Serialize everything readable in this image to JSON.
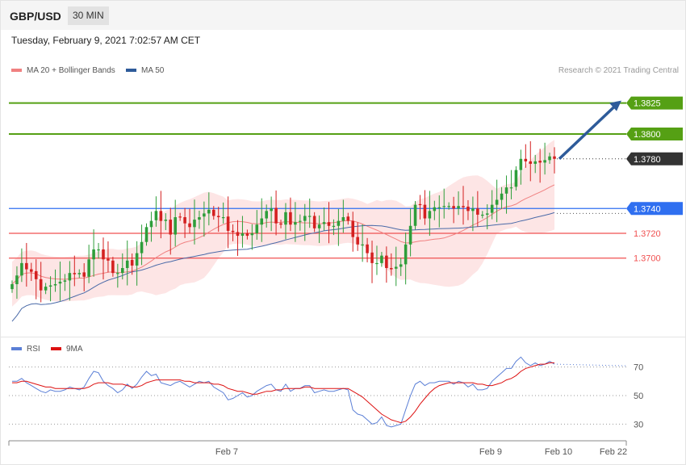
{
  "header": {
    "pair": "GBP/USD",
    "timeframe": "30 MIN"
  },
  "timestamp": "Tuesday, February 9, 2021 7:02:57 AM CET",
  "legend_top": [
    {
      "label": "MA 20 + Bollinger Bands",
      "color": "#f08080"
    },
    {
      "label": "MA 50",
      "color": "#2e5b9a"
    }
  ],
  "credit": "Research © 2021 Trading Central",
  "legend_bottom": [
    {
      "label": "RSI",
      "color": "#5b7fd6"
    },
    {
      "label": "9MA",
      "color": "#dd1111"
    }
  ],
  "colors": {
    "up": "#2e9e3a",
    "down": "#d42020",
    "target": "#55a014",
    "pivot": "#2f6ff0",
    "support": "#f05050",
    "last": "#333333",
    "band": "#fde0e0",
    "ma20": "#f08080",
    "ma50": "#4a6aa8",
    "arrow": "#2e5b9a"
  },
  "chart_data": {
    "type": "candlestick",
    "ylim": [
      1.3638,
      1.3856
    ],
    "levels": [
      {
        "value": 1.3825,
        "label": "1.3825",
        "kind": "target"
      },
      {
        "value": 1.38,
        "label": "1.3800",
        "kind": "target"
      },
      {
        "value": 1.378,
        "label": "1.3780",
        "kind": "last"
      },
      {
        "value": 1.374,
        "label": "1.3740",
        "kind": "pivot"
      },
      {
        "value": 1.372,
        "label": "1.3720",
        "kind": "support"
      },
      {
        "value": 1.37,
        "label": "1.3700",
        "kind": "support"
      }
    ],
    "closes": [
      1.3679,
      1.3686,
      1.3696,
      1.3691,
      1.3689,
      1.3683,
      1.3674,
      1.3677,
      1.3678,
      1.3679,
      1.3681,
      1.3682,
      1.3688,
      1.3687,
      1.3688,
      1.3685,
      1.3699,
      1.3707,
      1.3707,
      1.3699,
      1.3698,
      1.3688,
      1.3688,
      1.3692,
      1.3698,
      1.3694,
      1.3704,
      1.3713,
      1.3725,
      1.373,
      1.3738,
      1.373,
      1.3731,
      1.3719,
      1.3733,
      1.3733,
      1.3728,
      1.3725,
      1.3731,
      1.3733,
      1.3736,
      1.3739,
      1.3734,
      1.3733,
      1.3733,
      1.3722,
      1.3721,
      1.3718,
      1.372,
      1.3718,
      1.372,
      1.3727,
      1.3732,
      1.3738,
      1.374,
      1.3728,
      1.3727,
      1.3737,
      1.3727,
      1.3729,
      1.373,
      1.3734,
      1.3734,
      1.3724,
      1.3727,
      1.3729,
      1.3726,
      1.3726,
      1.373,
      1.3733,
      1.373,
      1.3717,
      1.3711,
      1.3711,
      1.3704,
      1.3696,
      1.3696,
      1.3702,
      1.3692,
      1.3691,
      1.3693,
      1.3695,
      1.3711,
      1.3726,
      1.3743,
      1.3743,
      1.3732,
      1.3738,
      1.3741,
      1.3741,
      1.3742,
      1.3742,
      1.374,
      1.3742,
      1.3741,
      1.3738,
      1.374,
      1.3735,
      1.3735,
      1.3736,
      1.3743,
      1.3747,
      1.3752,
      1.3757,
      1.3757,
      1.3771,
      1.378,
      1.3778,
      1.3776,
      1.3778,
      1.3777,
      1.3779,
      1.3782,
      1.378
    ],
    "candle_count": 114,
    "rsi": {
      "ylim": [
        20,
        80
      ],
      "ticks": [
        {
          "value": 70,
          "label": "70"
        },
        {
          "value": 50,
          "label": "50"
        },
        {
          "value": 30,
          "label": "30"
        }
      ],
      "rsi_values": [
        60,
        60,
        62,
        59,
        57,
        55,
        53,
        52,
        54,
        53,
        53,
        54,
        56,
        55,
        54,
        56,
        62,
        67,
        66,
        60,
        57,
        55,
        52,
        54,
        58,
        55,
        58,
        63,
        67,
        64,
        65,
        59,
        58,
        57,
        59,
        60,
        58,
        56,
        58,
        60,
        59,
        60,
        56,
        54,
        52,
        47,
        48,
        50,
        52,
        49,
        50,
        53,
        55,
        57,
        58,
        54,
        53,
        58,
        53,
        55,
        55,
        57,
        57,
        52,
        53,
        54,
        53,
        53,
        54,
        55,
        54,
        40,
        37,
        36,
        33,
        30,
        31,
        35,
        29,
        28,
        29,
        30,
        40,
        50,
        58,
        60,
        57,
        59,
        59,
        60,
        60,
        60,
        58,
        60,
        59,
        56,
        58,
        54,
        54,
        55,
        60,
        63,
        66,
        69,
        69,
        74,
        77,
        73,
        71,
        73,
        71,
        72,
        74,
        72
      ],
      "ma_values": [
        59,
        59,
        60,
        60,
        59,
        58,
        57,
        56,
        56,
        55,
        55,
        55,
        55,
        55,
        55,
        55,
        56,
        58,
        59,
        59,
        59,
        58,
        58,
        58,
        57,
        56,
        56,
        57,
        59,
        60,
        61,
        61,
        61,
        61,
        61,
        61,
        60,
        60,
        59,
        59,
        59,
        59,
        58,
        58,
        57,
        55,
        54,
        53,
        53,
        52,
        51,
        51,
        52,
        53,
        53,
        54,
        54,
        55,
        55,
        55,
        55,
        56,
        56,
        55,
        55,
        55,
        55,
        55,
        55,
        55,
        55,
        53,
        51,
        49,
        46,
        43,
        40,
        37,
        35,
        33,
        32,
        31,
        32,
        35,
        39,
        44,
        48,
        52,
        55,
        57,
        58,
        59,
        59,
        59,
        59,
        59,
        59,
        58,
        58,
        57,
        57,
        58,
        59,
        61,
        62,
        64,
        67,
        69,
        70,
        71,
        72,
        72,
        73,
        73
      ]
    },
    "xticks": [
      "Feb 7",
      "Feb 9",
      "Feb 10",
      "Feb 22"
    ]
  }
}
